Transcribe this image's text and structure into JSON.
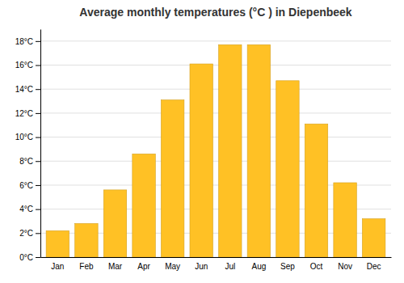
{
  "chart_data": {
    "type": "bar",
    "title": "Average monthly temperatures (°C ) in Diepenbeek",
    "categories": [
      "Jan",
      "Feb",
      "Mar",
      "Apr",
      "May",
      "Jun",
      "Jul",
      "Aug",
      "Sep",
      "Oct",
      "Nov",
      "Dec"
    ],
    "values": [
      2.2,
      2.8,
      5.6,
      8.6,
      13.1,
      16.1,
      17.7,
      17.7,
      14.7,
      11.1,
      6.2,
      3.2
    ],
    "color": "#FFC125",
    "ylim": [
      0,
      19
    ],
    "yticks": [
      {
        "value": 0,
        "label": "0°C"
      },
      {
        "value": 2,
        "label": "2°C"
      },
      {
        "value": 4,
        "label": "4°C"
      },
      {
        "value": 6,
        "label": "6°C"
      },
      {
        "value": 8,
        "label": "8°C"
      },
      {
        "value": 10,
        "label": "10°C"
      },
      {
        "value": 12,
        "label": "12°C"
      },
      {
        "value": 14,
        "label": "14°C"
      },
      {
        "value": 16,
        "label": "16°C"
      },
      {
        "value": 18,
        "label": "18°C"
      }
    ],
    "grid": true
  }
}
